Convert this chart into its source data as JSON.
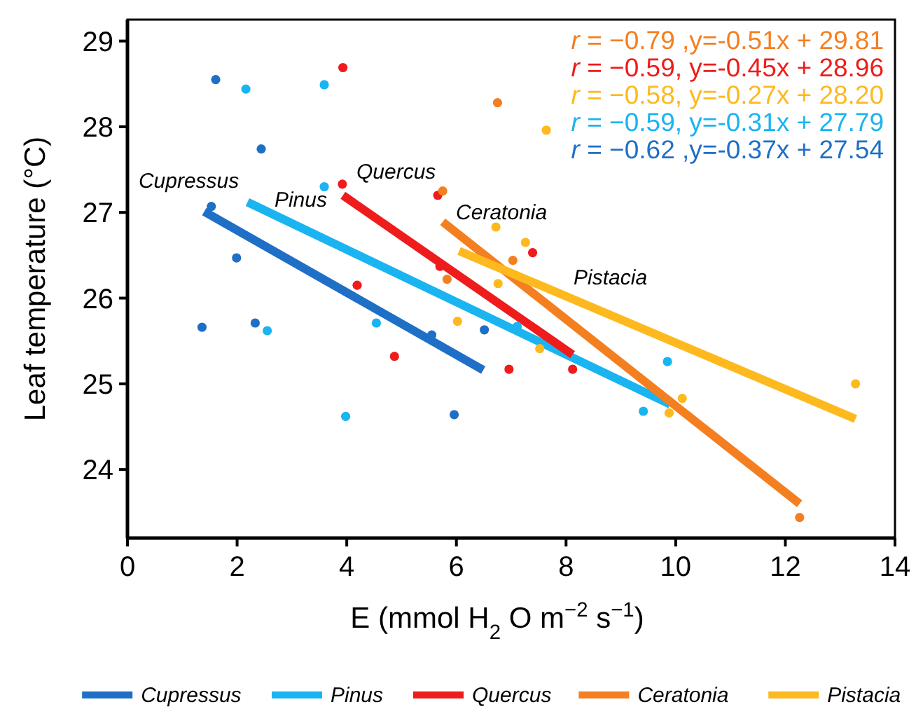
{
  "chart_data": {
    "type": "scatter",
    "xlabel": "E (mmol H$_{2}$ O m$^{−2}$ s$^{−1}$)",
    "ylabel": "Leaf temperature (°C)",
    "xlim": [
      0,
      14
    ],
    "xticks": [
      0,
      2,
      4,
      6,
      8,
      10,
      12,
      14
    ],
    "ylim": [
      23.2,
      29.25
    ],
    "yticks": [
      24,
      25,
      26,
      27,
      28,
      29
    ],
    "grid": false,
    "legend": "bottom",
    "series": [
      {
        "marker": "circle",
        "color": "#1f6fc6",
        "x": [
          1.61,
          2.44,
          1.53,
          1.99,
          1.36,
          2.33,
          5.55,
          6.51,
          5.96
        ],
        "values": [
          28.55,
          27.74,
          27.07,
          26.47,
          25.66,
          25.71,
          25.57,
          25.63,
          24.64
        ]
      },
      {
        "marker": "circle",
        "color": "#1ab4f0",
        "x": [
          2.16,
          3.59,
          3.59,
          2.55,
          4.54,
          3.98,
          7.11,
          9.85,
          9.41
        ],
        "values": [
          28.44,
          28.49,
          27.3,
          25.62,
          25.71,
          24.62,
          25.67,
          25.26,
          24.68
        ]
      },
      {
        "marker": "circle",
        "color": "#ee1c1c",
        "x": [
          3.93,
          3.92,
          5.66,
          4.19,
          4.87,
          5.7,
          6.96,
          7.39,
          8.12
        ],
        "values": [
          28.69,
          27.33,
          27.2,
          26.15,
          25.32,
          26.37,
          25.17,
          26.53,
          25.17
        ]
      },
      {
        "marker": "circle",
        "color": "#f47f20",
        "x": [
          6.75,
          5.75,
          7.03,
          5.83,
          12.26
        ],
        "values": [
          28.28,
          27.25,
          26.44,
          26.22,
          23.44
        ]
      },
      {
        "marker": "circle",
        "color": "#fdb91d",
        "x": [
          7.64,
          6.72,
          7.26,
          6.76,
          6.02,
          7.52,
          10.12,
          9.88,
          13.28
        ],
        "values": [
          27.96,
          26.83,
          26.65,
          26.17,
          25.73,
          25.41,
          24.83,
          24.66,
          25.0
        ]
      },
      {
        "type": "line",
        "name": "Cupressus",
        "color": "#1f6fc6",
        "x": [
          1.4,
          6.49
        ],
        "values": [
          27.01,
          25.16
        ]
      },
      {
        "type": "line",
        "name": "Pinus",
        "color": "#1ab4f0",
        "x": [
          2.19,
          9.9
        ],
        "values": [
          27.12,
          24.76
        ]
      },
      {
        "type": "line",
        "name": "Quercus",
        "color": "#ee1c1c",
        "x": [
          3.93,
          8.12
        ],
        "values": [
          27.2,
          25.34
        ]
      },
      {
        "type": "line",
        "name": "Ceratonia",
        "color": "#f47f20",
        "x": [
          5.75,
          12.26
        ],
        "values": [
          26.89,
          23.6
        ]
      },
      {
        "type": "line",
        "name": "Pistacia",
        "color": "#fdb91d",
        "x": [
          6.05,
          13.28
        ],
        "values": [
          26.55,
          24.59
        ]
      }
    ],
    "annotations": [
      "r = −0.79 ,y=-0.51x + 29.81",
      "r = −0.59, y=-0.45x + 28.96",
      "r = −0.58, y=-0.27x + 28.20",
      "r = −0.59, y=-0.31x + 27.79",
      "r = −0.62 ,y=-0.37x + 27.54",
      "Cupressus",
      "Pinus",
      "Quercus",
      "Ceratonia",
      "Pistacia"
    ]
  }
}
